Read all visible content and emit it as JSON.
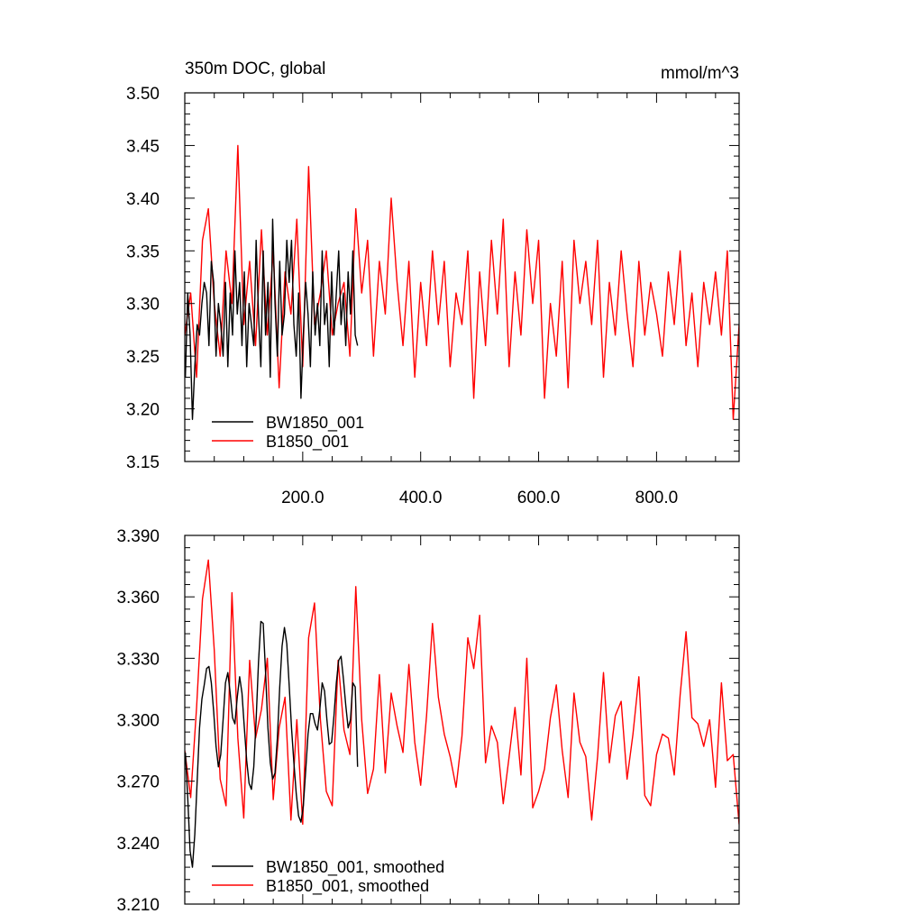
{
  "chart_data": [
    {
      "type": "line",
      "title": "350m DOC, global",
      "units": "mmol/m^3",
      "xlim": [
        0,
        940
      ],
      "ylim": [
        3.15,
        3.5
      ],
      "x_major_ticks": [
        200,
        400,
        600,
        800
      ],
      "x_tick_labels": [
        "200.0",
        "400.0",
        "600.0",
        "800.0"
      ],
      "y_major_ticks": [
        3.15,
        3.2,
        3.25,
        3.3,
        3.35,
        3.4,
        3.45,
        3.5
      ],
      "y_tick_labels": [
        "3.15",
        "3.20",
        "3.25",
        "3.30",
        "3.35",
        "3.40",
        "3.45",
        "3.50"
      ],
      "legend_position": "bottom-left",
      "series": [
        {
          "name": "BW1850_001",
          "color": "#000000",
          "x": [
            1,
            5,
            9,
            13,
            17,
            21,
            25,
            29,
            33,
            37,
            41,
            45,
            49,
            53,
            57,
            61,
            65,
            69,
            73,
            77,
            81,
            85,
            89,
            93,
            97,
            101,
            105,
            109,
            113,
            117,
            121,
            125,
            129,
            133,
            137,
            141,
            145,
            149,
            153,
            157,
            161,
            165,
            169,
            173,
            177,
            181,
            185,
            189,
            193,
            197,
            201,
            205,
            209,
            213,
            217,
            221,
            225,
            229,
            233,
            237,
            241,
            245,
            249,
            253,
            257,
            261,
            265,
            269,
            273,
            277,
            281,
            285,
            289,
            293
          ],
          "values": [
            3.23,
            3.31,
            3.27,
            3.19,
            3.24,
            3.28,
            3.27,
            3.3,
            3.32,
            3.31,
            3.26,
            3.34,
            3.32,
            3.25,
            3.3,
            3.28,
            3.25,
            3.32,
            3.24,
            3.31,
            3.27,
            3.35,
            3.29,
            3.32,
            3.26,
            3.33,
            3.24,
            3.3,
            3.28,
            3.26,
            3.36,
            3.29,
            3.24,
            3.35,
            3.27,
            3.32,
            3.23,
            3.38,
            3.3,
            3.25,
            3.34,
            3.27,
            3.29,
            3.36,
            3.32,
            3.36,
            3.28,
            3.25,
            3.31,
            3.21,
            3.27,
            3.32,
            3.29,
            3.24,
            3.33,
            3.27,
            3.3,
            3.26,
            3.35,
            3.28,
            3.3,
            3.24,
            3.33,
            3.27,
            3.31,
            3.35,
            3.28,
            3.31,
            3.26,
            3.33,
            3.29,
            3.35,
            3.27,
            3.26
          ]
        },
        {
          "name": "B1850_001",
          "color": "#ff0000",
          "x": [
            0,
            10,
            20,
            30,
            40,
            50,
            60,
            70,
            80,
            90,
            100,
            110,
            120,
            130,
            140,
            150,
            160,
            170,
            180,
            190,
            200,
            210,
            220,
            230,
            240,
            250,
            260,
            270,
            280,
            290,
            300,
            310,
            320,
            330,
            340,
            350,
            360,
            370,
            380,
            390,
            400,
            410,
            420,
            430,
            440,
            450,
            460,
            470,
            480,
            490,
            500,
            510,
            520,
            530,
            540,
            550,
            560,
            570,
            580,
            590,
            600,
            610,
            620,
            630,
            640,
            650,
            660,
            670,
            680,
            690,
            700,
            710,
            720,
            730,
            740,
            750,
            760,
            770,
            780,
            790,
            800,
            810,
            820,
            830,
            840,
            850,
            860,
            870,
            880,
            890,
            900,
            910,
            920,
            930,
            940
          ],
          "values": [
            3.27,
            3.31,
            3.23,
            3.36,
            3.39,
            3.3,
            3.25,
            3.35,
            3.3,
            3.45,
            3.28,
            3.34,
            3.26,
            3.37,
            3.27,
            3.35,
            3.22,
            3.33,
            3.29,
            3.38,
            3.24,
            3.43,
            3.28,
            3.31,
            3.35,
            3.27,
            3.3,
            3.32,
            3.25,
            3.39,
            3.31,
            3.36,
            3.25,
            3.34,
            3.29,
            3.4,
            3.32,
            3.26,
            3.34,
            3.23,
            3.32,
            3.26,
            3.35,
            3.28,
            3.34,
            3.24,
            3.31,
            3.28,
            3.35,
            3.21,
            3.33,
            3.26,
            3.36,
            3.29,
            3.38,
            3.24,
            3.33,
            3.27,
            3.37,
            3.3,
            3.36,
            3.21,
            3.3,
            3.25,
            3.34,
            3.22,
            3.36,
            3.3,
            3.34,
            3.28,
            3.36,
            3.23,
            3.32,
            3.27,
            3.35,
            3.29,
            3.24,
            3.34,
            3.27,
            3.32,
            3.29,
            3.25,
            3.33,
            3.28,
            3.35,
            3.26,
            3.31,
            3.24,
            3.32,
            3.28,
            3.33,
            3.27,
            3.35,
            3.19,
            3.28
          ]
        }
      ]
    },
    {
      "type": "line",
      "xlim": [
        0,
        940
      ],
      "ylim": [
        3.21,
        3.39
      ],
      "y_major_ticks": [
        3.21,
        3.24,
        3.27,
        3.3,
        3.33,
        3.36,
        3.39
      ],
      "y_tick_labels": [
        "3.210",
        "3.240",
        "3.270",
        "3.300",
        "3.330",
        "3.360",
        "3.390"
      ],
      "legend_position": "bottom-left",
      "series": [
        {
          "name": "BW1850_001, smoothed",
          "color": "#000000",
          "x": [
            1,
            5,
            9,
            13,
            17,
            21,
            25,
            29,
            33,
            37,
            41,
            45,
            49,
            53,
            57,
            61,
            65,
            69,
            73,
            77,
            81,
            85,
            89,
            93,
            97,
            101,
            105,
            109,
            113,
            117,
            121,
            125,
            129,
            133,
            137,
            141,
            145,
            149,
            153,
            157,
            161,
            165,
            169,
            173,
            177,
            181,
            185,
            189,
            193,
            197,
            201,
            205,
            209,
            213,
            217,
            221,
            225,
            229,
            233,
            237,
            241,
            245,
            249,
            253,
            257,
            261,
            265,
            269,
            273,
            277,
            281,
            285,
            289,
            293
          ],
          "values": [
            3.284,
            3.262,
            3.236,
            3.228,
            3.244,
            3.27,
            3.296,
            3.31,
            3.317,
            3.325,
            3.326,
            3.318,
            3.304,
            3.287,
            3.277,
            3.283,
            3.3,
            3.318,
            3.323,
            3.313,
            3.301,
            3.298,
            3.311,
            3.321,
            3.313,
            3.296,
            3.28,
            3.269,
            3.266,
            3.277,
            3.3,
            3.328,
            3.348,
            3.347,
            3.323,
            3.296,
            3.279,
            3.271,
            3.274,
            3.291,
            3.316,
            3.336,
            3.345,
            3.337,
            3.317,
            3.296,
            3.279,
            3.264,
            3.253,
            3.25,
            3.258,
            3.275,
            3.293,
            3.303,
            3.303,
            3.298,
            3.295,
            3.305,
            3.318,
            3.314,
            3.3,
            3.288,
            3.289,
            3.302,
            3.318,
            3.329,
            3.331,
            3.32,
            3.307,
            3.296,
            3.3,
            3.318,
            3.316,
            3.277
          ]
        },
        {
          "name": "B1850_001, smoothed",
          "color": "#ff0000",
          "x": [
            0,
            10,
            20,
            30,
            40,
            50,
            60,
            70,
            80,
            90,
            100,
            110,
            120,
            130,
            140,
            150,
            160,
            170,
            180,
            190,
            200,
            210,
            220,
            230,
            240,
            250,
            260,
            270,
            280,
            290,
            300,
            310,
            320,
            330,
            340,
            350,
            360,
            370,
            380,
            390,
            400,
            410,
            420,
            430,
            440,
            450,
            460,
            470,
            480,
            490,
            500,
            510,
            520,
            530,
            540,
            550,
            560,
            570,
            580,
            590,
            600,
            610,
            620,
            630,
            640,
            650,
            660,
            670,
            680,
            690,
            700,
            710,
            720,
            730,
            740,
            750,
            760,
            770,
            780,
            790,
            800,
            810,
            820,
            830,
            840,
            850,
            860,
            870,
            880,
            890,
            900,
            910,
            920,
            930,
            940
          ],
          "values": [
            3.285,
            3.262,
            3.306,
            3.359,
            3.378,
            3.334,
            3.271,
            3.258,
            3.362,
            3.291,
            3.252,
            3.329,
            3.291,
            3.305,
            3.33,
            3.261,
            3.296,
            3.311,
            3.251,
            3.3,
            3.249,
            3.34,
            3.357,
            3.3,
            3.265,
            3.258,
            3.329,
            3.295,
            3.283,
            3.365,
            3.3,
            3.264,
            3.276,
            3.322,
            3.274,
            3.313,
            3.297,
            3.284,
            3.327,
            3.289,
            3.268,
            3.302,
            3.347,
            3.311,
            3.293,
            3.282,
            3.267,
            3.292,
            3.34,
            3.325,
            3.351,
            3.279,
            3.297,
            3.289,
            3.259,
            3.282,
            3.306,
            3.273,
            3.33,
            3.257,
            3.265,
            3.276,
            3.301,
            3.317,
            3.285,
            3.262,
            3.313,
            3.289,
            3.282,
            3.251,
            3.282,
            3.323,
            3.279,
            3.302,
            3.309,
            3.271,
            3.293,
            3.321,
            3.263,
            3.258,
            3.283,
            3.293,
            3.291,
            3.273,
            3.312,
            3.343,
            3.301,
            3.298,
            3.287,
            3.3,
            3.267,
            3.318,
            3.28,
            3.283,
            3.249
          ]
        }
      ]
    }
  ]
}
